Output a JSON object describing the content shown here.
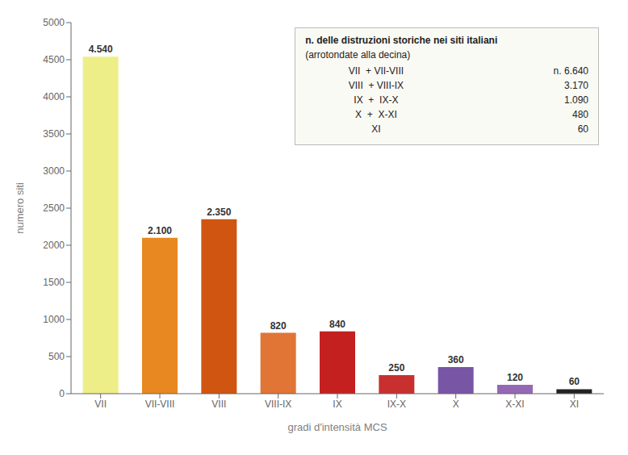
{
  "chart_data": {
    "type": "bar",
    "categories": [
      "VII",
      "VII-VIII",
      "VIII",
      "VIII-IX",
      "IX",
      "IX-X",
      "X",
      "X-XI",
      "XI"
    ],
    "values": [
      4540,
      2100,
      2350,
      820,
      840,
      250,
      360,
      120,
      60
    ],
    "value_labels": [
      "4.540",
      "2.100",
      "2.350",
      "820",
      "840",
      "250",
      "360",
      "120",
      "60"
    ],
    "data_labels": true,
    "colors": [
      "#eeee88",
      "#e88820",
      "#d05510",
      "#e07535",
      "#c42020",
      "#c83030",
      "#7855a5",
      "#9468b5",
      "#222222"
    ],
    "xlabel": "gradi d'intensità MCS",
    "ylabel": "numero siti",
    "ylim": [
      0,
      5000
    ],
    "yticks": [
      0,
      500,
      1000,
      1500,
      2000,
      2500,
      3000,
      3500,
      4000,
      4500,
      5000
    ],
    "grid": false,
    "annotations": [
      "n. delle distruzioni storiche nei siti italiani",
      "(arrotondate alla decina)",
      [
        "VII  + VII-VIII",
        "n. 6.640"
      ],
      [
        "VIII  + VIII-IX",
        "3.170"
      ],
      [
        "IX  +  IX-X",
        "1.090"
      ],
      [
        "X  +  X-XI",
        "480"
      ],
      [
        "XI",
        "60"
      ]
    ]
  }
}
